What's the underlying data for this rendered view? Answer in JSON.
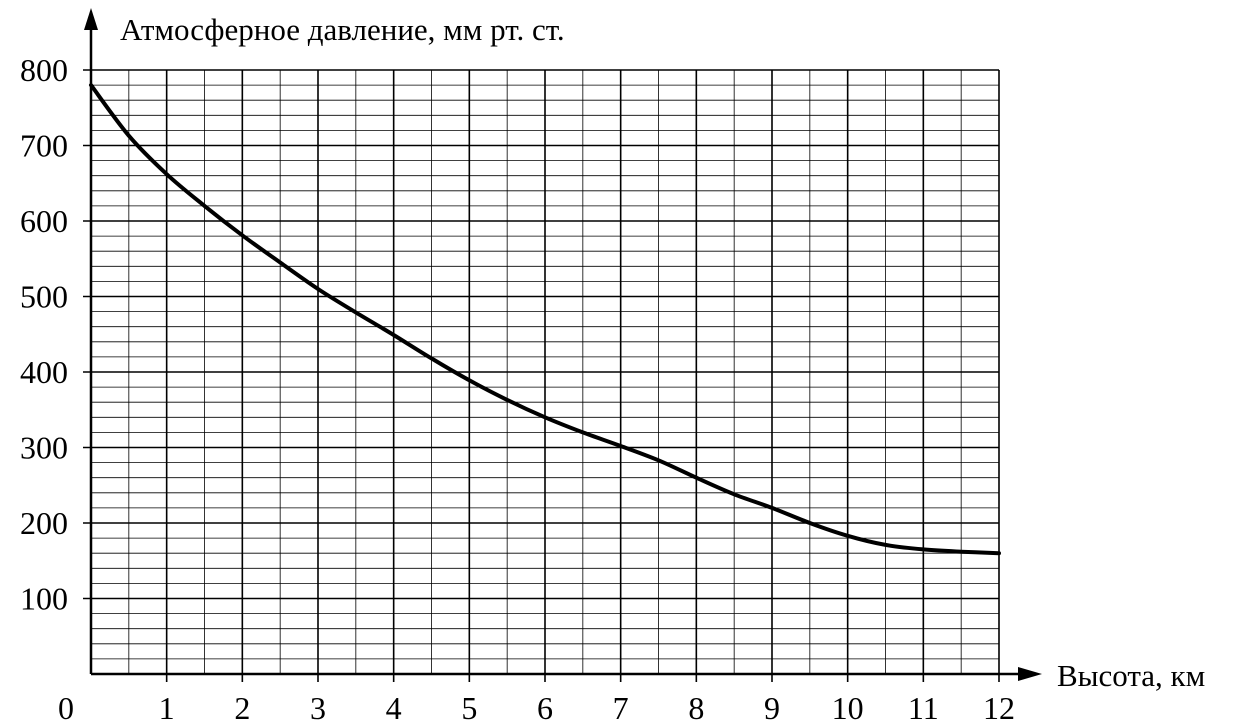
{
  "chart_data": {
    "type": "line",
    "xlabel": "Высота, км",
    "ylabel": "Атмосферное давление, мм рт. ст.",
    "origin_label": "0",
    "xlim": [
      0,
      12
    ],
    "ylim": [
      0,
      800
    ],
    "x_ticks": [
      "1",
      "2",
      "3",
      "4",
      "5",
      "6",
      "7",
      "8",
      "9",
      "10",
      "11",
      "12"
    ],
    "y_ticks": [
      "100",
      "200",
      "300",
      "400",
      "500",
      "600",
      "700",
      "800"
    ],
    "grid": true,
    "minor_grid": {
      "x_step": 0.5,
      "y_step": 20
    },
    "series": [
      {
        "color": "#000000",
        "x": [
          0,
          0.5,
          1,
          1.5,
          2,
          2.5,
          3,
          3.5,
          4,
          4.5,
          5,
          5.5,
          6,
          6.5,
          7,
          7.5,
          8,
          8.5,
          9,
          9.5,
          10,
          10.5,
          11,
          11.5,
          12
        ],
        "y": [
          780,
          713,
          662,
          620,
          581,
          545,
          510,
          479,
          449,
          418,
          389,
          363,
          340,
          320,
          302,
          283,
          260,
          238,
          220,
          200,
          183,
          171,
          165,
          162,
          160
        ]
      }
    ]
  }
}
